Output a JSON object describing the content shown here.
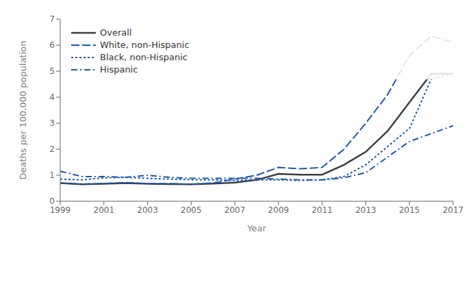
{
  "chart_data": {
    "type": "line",
    "xlabel": "Year",
    "ylabel": "Deaths per 100,000 population",
    "x": [
      1999,
      2000,
      2001,
      2002,
      2003,
      2004,
      2005,
      2006,
      2007,
      2008,
      2009,
      2010,
      2011,
      2012,
      2013,
      2014,
      2015,
      2016,
      2017
    ],
    "series": [
      {
        "name": "Overall",
        "color": "#3d3d3d",
        "line_style": "solid",
        "values": [
          0.7,
          0.65,
          0.67,
          0.7,
          0.67,
          0.66,
          0.65,
          0.68,
          0.72,
          0.82,
          1.05,
          1.02,
          1.02,
          1.4,
          1.9,
          2.7,
          3.8,
          4.9,
          4.9
        ]
      },
      {
        "name": "White, non-Hispanic",
        "color": "#1a56b0",
        "line_style": "dashed",
        "values": [
          0.7,
          0.65,
          0.68,
          0.72,
          0.68,
          0.68,
          0.65,
          0.7,
          0.85,
          1.0,
          1.3,
          1.25,
          1.3,
          2.0,
          3.0,
          4.1,
          5.6,
          6.35,
          6.1
        ]
      },
      {
        "name": "Black, non-Hispanic",
        "color": "#1a56b0",
        "line_style": "dotted",
        "values": [
          0.85,
          0.82,
          0.9,
          0.92,
          0.88,
          0.85,
          0.83,
          0.82,
          0.8,
          0.82,
          0.82,
          0.8,
          0.82,
          0.95,
          1.4,
          2.1,
          2.8,
          4.7,
          4.9
        ]
      },
      {
        "name": "Hispanic",
        "color": "#1a56b0",
        "line_style": "dashdot",
        "values": [
          1.15,
          0.95,
          0.95,
          0.92,
          1.0,
          0.92,
          0.88,
          0.88,
          0.88,
          0.88,
          0.85,
          0.82,
          0.82,
          0.9,
          1.1,
          1.7,
          2.3,
          2.6,
          2.9
        ]
      }
    ],
    "xlim": [
      1999,
      2017
    ],
    "xticks": [
      1999,
      2001,
      2003,
      2005,
      2007,
      2009,
      2011,
      2013,
      2015,
      2017
    ],
    "ylim": [
      0,
      7
    ],
    "yticks": [
      0,
      1,
      2,
      3,
      4,
      5,
      6,
      7
    ],
    "grid": false,
    "legend": "upper left"
  }
}
